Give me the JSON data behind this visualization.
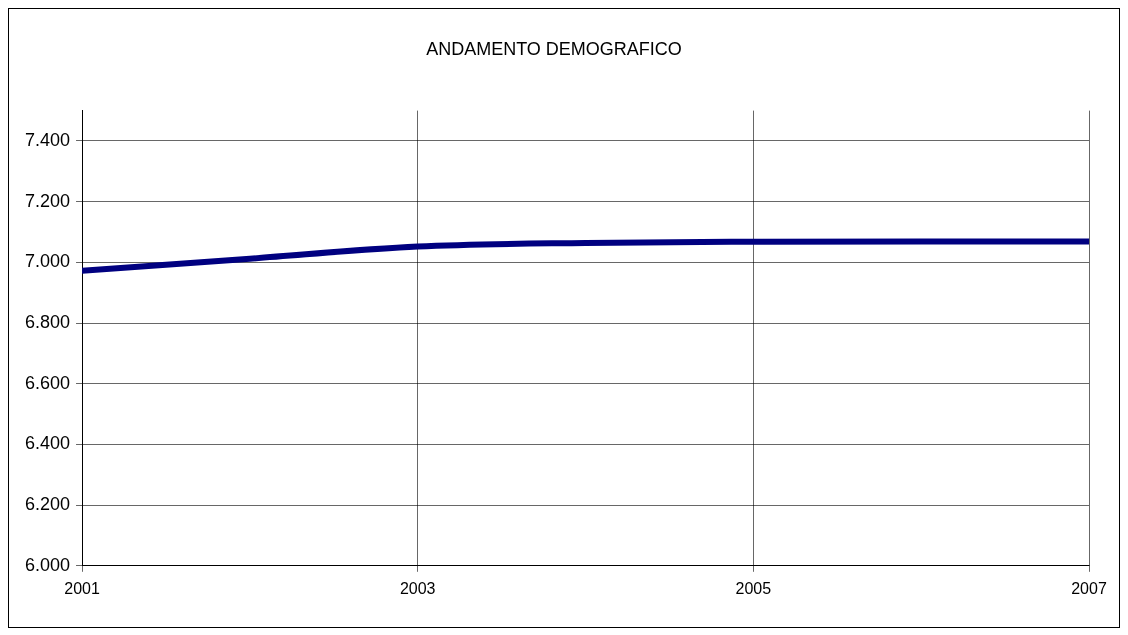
{
  "chart_data": {
    "type": "line",
    "title": "ANDAMENTO DEMOGRAFICO",
    "x": [
      2001,
      2002,
      2003,
      2004,
      2005,
      2006,
      2007
    ],
    "series": [
      {
        "color": "#000080",
        "values": [
          6972,
          7012,
          7052,
          7064,
          7068,
          7069,
          7069
        ]
      }
    ],
    "xlim": [
      2001,
      2007
    ],
    "xticks": [
      2001,
      2003,
      2005,
      2007
    ],
    "ylim": [
      6000,
      7500
    ],
    "yticks": [
      {
        "value": 6000,
        "label": "6.000"
      },
      {
        "value": 6200,
        "label": "6.200"
      },
      {
        "value": 6400,
        "label": "6.400"
      },
      {
        "value": 6600,
        "label": "6.600"
      },
      {
        "value": 6800,
        "label": "6.800"
      },
      {
        "value": 7000,
        "label": "7.000"
      },
      {
        "value": 7200,
        "label": "7.200"
      },
      {
        "value": 7400,
        "label": "7.400"
      }
    ],
    "grid": true,
    "legend": false,
    "marker": "none",
    "line_style": "solid"
  }
}
